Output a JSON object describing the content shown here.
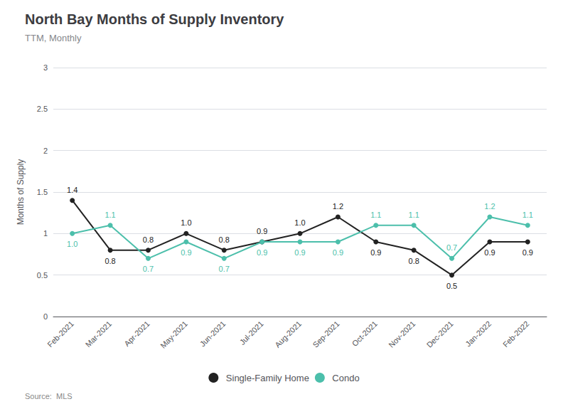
{
  "chart_data": {
    "type": "line",
    "title": "North Bay Months of Supply Inventory",
    "subtitle": "TTM, Monthly",
    "ylabel": "Months of Supply",
    "source": "Source:  MLS",
    "categories": [
      "Feb-2021",
      "Mar-2021",
      "Apr-2021",
      "May-2021",
      "Jun-2021",
      "Jul-2021",
      "Aug-2021",
      "Sep-2021",
      "Oct-2021",
      "Nov-2021",
      "Dec-2021",
      "Jan-2022",
      "Feb-2022"
    ],
    "series": [
      {
        "name": "Single-Family Home",
        "color": "#222222",
        "marker": "circle",
        "values": [
          1.4,
          0.8,
          0.8,
          1.0,
          0.8,
          0.9,
          1.0,
          1.2,
          0.9,
          0.8,
          0.5,
          0.9,
          0.9
        ],
        "value_labels": [
          "1.4",
          "0.8",
          "0.8",
          "1.0",
          "0.8",
          "0.9",
          "1.0",
          "1.2",
          "0.9",
          "0.8",
          "0.5",
          "0.9",
          "0.9"
        ]
      },
      {
        "name": "Condo",
        "color": "#4cbfab",
        "marker": "circle",
        "values": [
          1.0,
          1.1,
          0.7,
          0.9,
          0.7,
          0.9,
          0.9,
          0.9,
          1.1,
          1.1,
          0.7,
          1.2,
          1.1
        ],
        "value_labels": [
          "1.0",
          "1.1",
          "0.7",
          "0.9",
          "0.7",
          "0.9",
          "0.9",
          "0.9",
          "1.1",
          "1.1",
          "0.7",
          "1.2",
          "1.1"
        ]
      }
    ],
    "ylim": [
      0,
      3.0
    ],
    "yticks": [
      0,
      0.5,
      1,
      1.5,
      2,
      2.5,
      3
    ],
    "grid": true,
    "legend": "bottom",
    "data_labels": true
  }
}
